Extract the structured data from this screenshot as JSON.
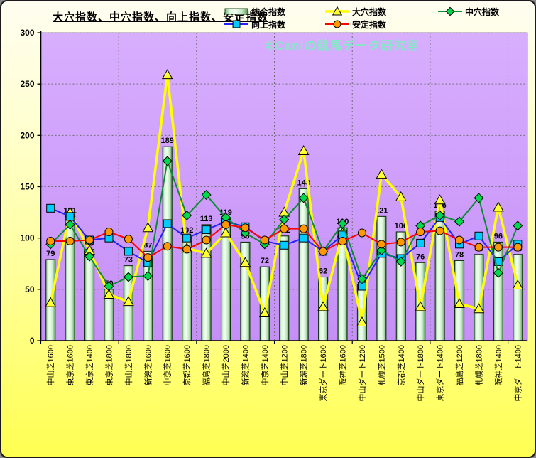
{
  "chart": {
    "title": "大穴指数、中穴指数、向上指数、安定指数",
    "watermark": "©Caniの競馬データ研究室",
    "legend": [
      {
        "label": "総合指数",
        "type": "bar",
        "line": "#1c4a1c",
        "fill": "#bde6b8"
      },
      {
        "label": "大穴指数",
        "type": "triangle",
        "line": "#ffff00",
        "fill": "#ffff33"
      },
      {
        "label": "中穴指数",
        "type": "diamond",
        "line": "#0a8c32",
        "fill": "#00d94e"
      },
      {
        "label": "向上指数",
        "type": "square",
        "line": "#2222ff",
        "fill": "#00ccff"
      },
      {
        "label": "安定指数",
        "type": "circle",
        "line": "#ff0000",
        "fill": "#ff9900"
      }
    ],
    "colors": {
      "plot_bg_top": "#d8aefe",
      "plot_bg_bottom": "#c58ff7",
      "gridline": "#6b6b6b",
      "axis": "#000000",
      "bar_outline": "#123312"
    }
  },
  "chart_data": {
    "type": "bar",
    "title": "大穴指数、中穴指数、向上指数、安定指数",
    "xlabel": "",
    "ylabel": "",
    "ylim": [
      0,
      300
    ],
    "yticks": [
      0,
      50,
      100,
      150,
      200,
      250,
      300
    ],
    "grid": {
      "horizontal": true,
      "vertical_every": 4
    },
    "legend_position": "top",
    "x_tick_rotation": 90,
    "categories": [
      "中山芝1600",
      "東京芝1600",
      "東京芝1400",
      "東京芝1800",
      "中山芝1800",
      "新潟芝1600",
      "中京芝1600",
      "京都芝1600",
      "福島芝1800",
      "中山芝2000",
      "新潟芝1400",
      "中京芝1400",
      "中山芝1200",
      "新潟芝1800",
      "東京ダート1600",
      "阪神芝1600",
      "中山ダート1200",
      "札幌芝1500",
      "京都芝1400",
      "中山ダート1800",
      "東京ダート1400",
      "福島芝1200",
      "札幌芝1800",
      "阪神芝1400",
      "中京ダート1400"
    ],
    "series": [
      {
        "name": "総合指数",
        "type": "bar",
        "color": "#bde6b8",
        "data_labels": true,
        "values": [
          79,
          121,
          89,
          50,
          73,
          87,
          189,
          102,
          113,
          119,
          96,
          72,
          102,
          148,
          62,
          110,
          55,
          121,
          106,
          76,
          126,
          78,
          84,
          96,
          84
        ]
      },
      {
        "name": "大穴指数",
        "type": "line",
        "marker": "triangle",
        "color": "#ffff00",
        "marker_fill": "#ffff33",
        "width": 3.5,
        "values": [
          37,
          125,
          88,
          45,
          38,
          110,
          259,
          90,
          85,
          105,
          76,
          27,
          125,
          185,
          33,
          105,
          18,
          162,
          140,
          33,
          137,
          36,
          31,
          130,
          54
        ]
      },
      {
        "name": "向上指数",
        "type": "line",
        "marker": "square",
        "color": "#2222ff",
        "marker_fill": "#00ccff",
        "width": 2,
        "values": [
          129,
          121,
          98,
          100,
          87,
          76,
          114,
          100,
          108,
          116,
          111,
          97,
          93,
          100,
          87,
          103,
          53,
          85,
          80,
          95,
          120,
          94,
          102,
          77,
          94
        ]
      },
      {
        "name": "中穴指数",
        "type": "line",
        "marker": "diamond",
        "color": "#0a8c32",
        "marker_fill": "#00d94e",
        "width": 2,
        "values": [
          94,
          113,
          82,
          53,
          62,
          63,
          175,
          122,
          142,
          120,
          105,
          94,
          118,
          139,
          87,
          114,
          60,
          88,
          77,
          112,
          122,
          116,
          139,
          66,
          112
        ]
      },
      {
        "name": "安定指数",
        "type": "line",
        "marker": "circle",
        "color": "#ff0000",
        "marker_fill": "#ff9900",
        "width": 2,
        "values": [
          97,
          97,
          98,
          106,
          99,
          81,
          92,
          89,
          98,
          113,
          110,
          98,
          109,
          109,
          87,
          97,
          105,
          94,
          96,
          106,
          107,
          98,
          91,
          91,
          91
        ]
      }
    ]
  }
}
